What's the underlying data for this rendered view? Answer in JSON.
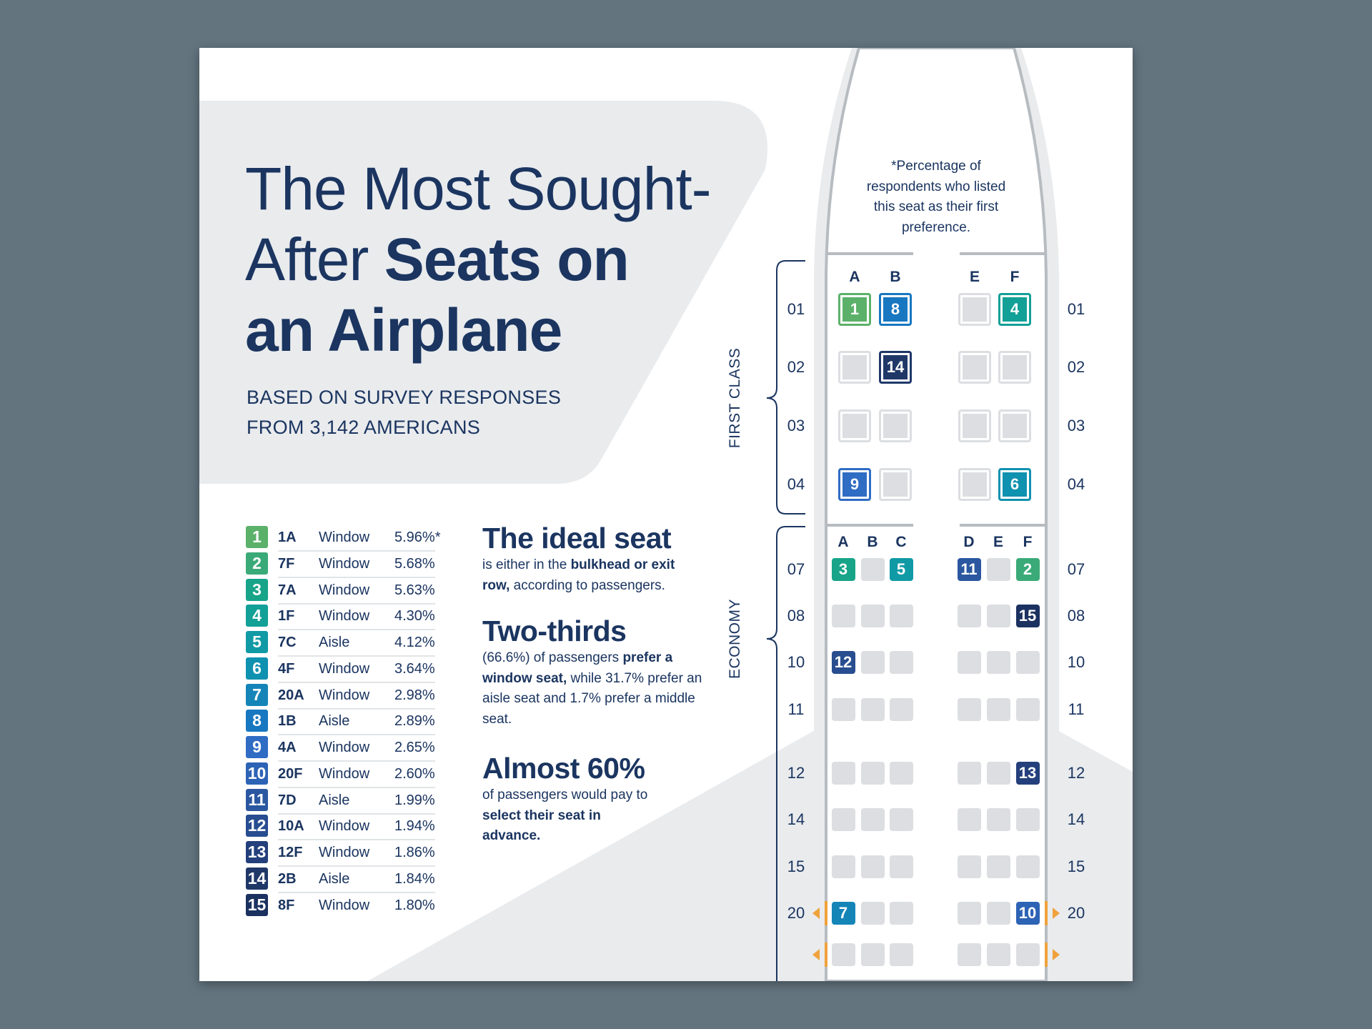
{
  "title": {
    "line1": "The Most Sought-",
    "line2_regular": "After ",
    "line2_bold": "Seats on",
    "line3_bold": "an Airplane"
  },
  "subtitle": {
    "line1": "BASED ON SURVEY RESPONSES",
    "line2": "FROM 3,142 AMERICANS"
  },
  "colors": {
    "navy": "#1b3560",
    "empty_seat": "#dcdee1",
    "exit": "#f0a23c",
    "panel": "#e9ebed",
    "ranks": [
      "#5cb16a",
      "#3aaa78",
      "#17a489",
      "#12a097",
      "#109aa5",
      "#0f91b0",
      "#1585b8",
      "#1777c0",
      "#2f6cc4",
      "#2d63b5",
      "#2a57a0",
      "#284d90",
      "#233f7c",
      "#1f3868",
      "#1b3160"
    ]
  },
  "ranking": [
    {
      "rank": "1",
      "seat": "1A",
      "type": "Window",
      "pct": "5.96%*"
    },
    {
      "rank": "2",
      "seat": "7F",
      "type": "Window",
      "pct": "5.68%"
    },
    {
      "rank": "3",
      "seat": "7A",
      "type": "Window",
      "pct": "5.63%"
    },
    {
      "rank": "4",
      "seat": "1F",
      "type": "Window",
      "pct": "4.30%"
    },
    {
      "rank": "5",
      "seat": "7C",
      "type": "Aisle",
      "pct": "4.12%"
    },
    {
      "rank": "6",
      "seat": "4F",
      "type": "Window",
      "pct": "3.64%"
    },
    {
      "rank": "7",
      "seat": "20A",
      "type": "Window",
      "pct": "2.98%"
    },
    {
      "rank": "8",
      "seat": "1B",
      "type": "Aisle",
      "pct": "2.89%"
    },
    {
      "rank": "9",
      "seat": "4A",
      "type": "Window",
      "pct": "2.65%"
    },
    {
      "rank": "10",
      "seat": "20F",
      "type": "Window",
      "pct": "2.60%"
    },
    {
      "rank": "11",
      "seat": "7D",
      "type": "Aisle",
      "pct": "1.99%"
    },
    {
      "rank": "12",
      "seat": "10A",
      "type": "Window",
      "pct": "1.94%"
    },
    {
      "rank": "13",
      "seat": "12F",
      "type": "Window",
      "pct": "1.86%"
    },
    {
      "rank": "14",
      "seat": "2B",
      "type": "Aisle",
      "pct": "1.84%"
    },
    {
      "rank": "15",
      "seat": "8F",
      "type": "Window",
      "pct": "1.80%"
    }
  ],
  "facts": [
    {
      "heading": "The ideal seat",
      "parts": [
        [
          "is either in the ",
          false
        ],
        [
          "bulkhead or exit row,",
          true
        ],
        [
          " according to passengers.",
          false
        ]
      ]
    },
    {
      "heading": "Two-thirds",
      "parts": [
        [
          "(66.6%) of passengers ",
          false
        ],
        [
          "prefer a window seat,",
          true
        ],
        [
          " while 31.7% prefer an aisle seat and 1.7% prefer a middle seat.",
          false
        ]
      ]
    },
    {
      "heading": "Almost 60%",
      "parts": [
        [
          "of passengers would pay to ",
          false
        ],
        [
          "select their seat in advance.",
          true
        ]
      ]
    }
  ],
  "footnote": "*Percentage of respondents who listed this seat as their first preference.",
  "seatmap": {
    "first_class": {
      "label": "FIRST CLASS",
      "columns": [
        "A",
        "B",
        "E",
        "F"
      ],
      "rows": [
        {
          "row": "01",
          "seats": [
            1,
            8,
            null,
            4
          ]
        },
        {
          "row": "02",
          "seats": [
            null,
            14,
            null,
            null
          ]
        },
        {
          "row": "03",
          "seats": [
            null,
            null,
            null,
            null
          ]
        },
        {
          "row": "04",
          "seats": [
            9,
            null,
            null,
            6
          ]
        }
      ]
    },
    "economy": {
      "label": "ECONOMY",
      "columns": [
        "A",
        "B",
        "C",
        "D",
        "E",
        "F"
      ],
      "rows": [
        {
          "row": "07",
          "seats": [
            3,
            null,
            5,
            11,
            null,
            2
          ]
        },
        {
          "row": "08",
          "seats": [
            null,
            null,
            null,
            null,
            null,
            15
          ]
        },
        {
          "row": "10",
          "seats": [
            12,
            null,
            null,
            null,
            null,
            null
          ]
        },
        {
          "row": "11",
          "seats": [
            null,
            null,
            null,
            null,
            null,
            null
          ]
        },
        {
          "row": "12",
          "seats": [
            null,
            null,
            null,
            null,
            null,
            13
          ]
        },
        {
          "row": "14",
          "seats": [
            null,
            null,
            null,
            null,
            null,
            null
          ]
        },
        {
          "row": "15",
          "seats": [
            null,
            null,
            null,
            null,
            null,
            null
          ]
        },
        {
          "row": "20",
          "seats": [
            7,
            null,
            null,
            null,
            null,
            10
          ],
          "exit": true
        },
        {
          "row": "",
          "seats": [
            null,
            null,
            null,
            null,
            null,
            null
          ],
          "exit": true
        }
      ]
    }
  }
}
